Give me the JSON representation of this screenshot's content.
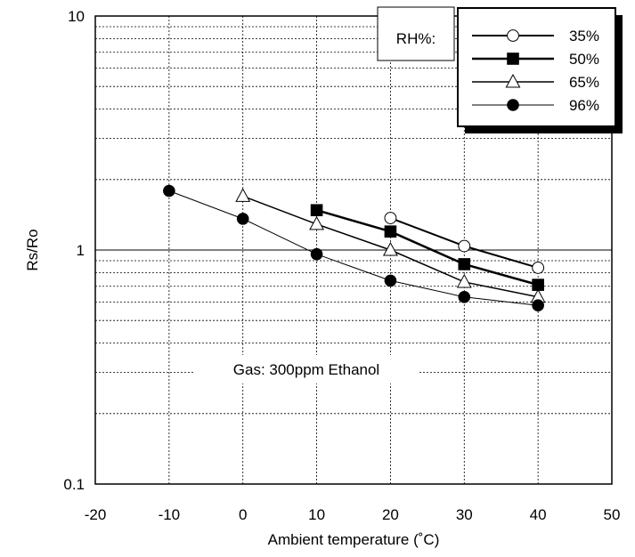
{
  "chart_data": {
    "type": "line",
    "xlabel": "Ambient temperature (˚C)",
    "ylabel": "Rs/Ro",
    "xlim": [
      -20,
      50
    ],
    "ylim": [
      0.1,
      10
    ],
    "yscale": "log",
    "x_ticks": [
      "-20",
      "-10",
      "0",
      "10",
      "20",
      "30",
      "40",
      "50"
    ],
    "y_ticks": [
      "0.1",
      "1",
      "10"
    ],
    "grid": true,
    "annotation": "Gas: 300ppm Ethanol",
    "legend": {
      "title": "RH%:",
      "position": "top-right",
      "entries": [
        "35%",
        "50%",
        "65%",
        "96%"
      ]
    },
    "series": [
      {
        "name": "35%",
        "marker": "open-circle",
        "x": [
          20,
          30,
          40
        ],
        "y": [
          1.37,
          1.04,
          0.84
        ]
      },
      {
        "name": "50%",
        "marker": "filled-square",
        "x": [
          10,
          20,
          30,
          40
        ],
        "y": [
          1.48,
          1.2,
          0.87,
          0.71
        ]
      },
      {
        "name": "65%",
        "marker": "open-triangle",
        "x": [
          0,
          10,
          20,
          30,
          40
        ],
        "y": [
          1.7,
          1.29,
          1.0,
          0.73,
          0.63
        ]
      },
      {
        "name": "96%",
        "marker": "filled-circle",
        "x": [
          -10,
          0,
          10,
          20,
          30,
          40
        ],
        "y": [
          1.79,
          1.36,
          0.96,
          0.74,
          0.63,
          0.58
        ]
      }
    ]
  }
}
